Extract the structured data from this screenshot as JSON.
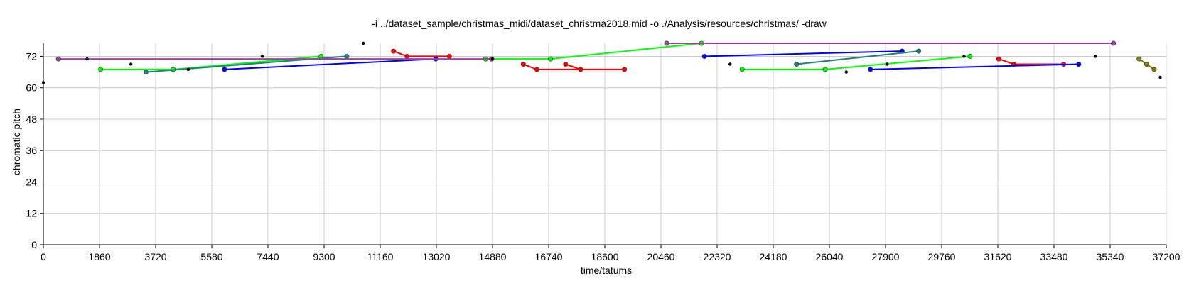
{
  "chart_data": {
    "type": "scatter",
    "title": "-i ../dataset_sample/christmas_midi/dataset_christma2018.mid -o ./Analysis/resources/christmas/ -draw",
    "xlabel": "time/tatums",
    "ylabel": "chromatic pitch",
    "xlim": [
      0,
      37200
    ],
    "ylim": [
      0,
      77
    ],
    "grid": true,
    "xticks": [
      0,
      1860,
      3720,
      5580,
      7440,
      9300,
      11160,
      13020,
      14880,
      16740,
      18600,
      20460,
      22320,
      24180,
      26040,
      27900,
      29760,
      31620,
      33480,
      35340,
      37200
    ],
    "yticks": [
      0,
      12,
      24,
      36,
      48,
      60,
      72
    ],
    "series": [
      {
        "color": "#ff0000",
        "segments": [
          [
            [
              11600,
              74
            ],
            [
              12050,
              72
            ],
            [
              13450,
              72
            ]
          ],
          [
            [
              15900,
              69
            ],
            [
              16350,
              67
            ],
            [
              19250,
              67
            ]
          ],
          [
            [
              17300,
              69
            ],
            [
              17800,
              67
            ]
          ],
          [
            [
              31650,
              71
            ],
            [
              32150,
              69
            ],
            [
              33800,
              69
            ]
          ]
        ]
      },
      {
        "color": "#00ff00",
        "segments": [
          [
            [
              1900,
              67
            ],
            [
              4300,
              67
            ],
            [
              9200,
              72
            ]
          ],
          [
            [
              14650,
              71
            ],
            [
              16800,
              71
            ],
            [
              21800,
              77
            ]
          ],
          [
            [
              23150,
              67
            ],
            [
              25900,
              67
            ],
            [
              30700,
              72
            ]
          ]
        ]
      },
      {
        "color": "#0000ff",
        "segments": [
          [
            [
              6000,
              67
            ],
            [
              13000,
              71
            ]
          ],
          [
            [
              21900,
              72
            ],
            [
              28450,
              74
            ]
          ],
          [
            [
              27400,
              67
            ],
            [
              34300,
              69
            ]
          ]
        ]
      },
      {
        "color": "#1f7f7f",
        "segments": [
          [
            [
              3400,
              66
            ],
            [
              10050,
              72
            ]
          ],
          [
            [
              24950,
              69
            ],
            [
              29000,
              74
            ]
          ]
        ]
      },
      {
        "color": "#a040a0",
        "segments": [
          [
            [
              500,
              71
            ],
            [
              14850,
              71
            ]
          ],
          [
            [
              20650,
              77
            ],
            [
              35450,
              77
            ]
          ]
        ]
      },
      {
        "color": "#7f7f00",
        "segments": [
          [
            [
              36300,
              71
            ],
            [
              36550,
              69
            ],
            [
              36800,
              67
            ]
          ]
        ]
      }
    ],
    "points": {
      "color": "#000000",
      "values": [
        [
          0,
          62
        ],
        [
          1450,
          71
        ],
        [
          2900,
          69
        ],
        [
          4800,
          67
        ],
        [
          7250,
          72
        ],
        [
          10600,
          77
        ],
        [
          14880,
          71
        ],
        [
          22750,
          69
        ],
        [
          26600,
          66
        ],
        [
          27950,
          69
        ],
        [
          30500,
          72
        ],
        [
          34850,
          72
        ],
        [
          37000,
          64
        ]
      ]
    }
  }
}
